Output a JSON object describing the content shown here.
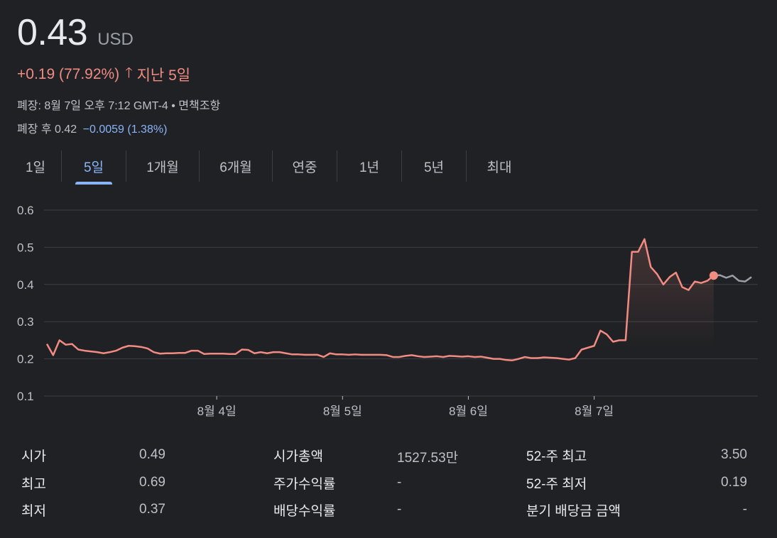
{
  "quote": {
    "price": "0.43",
    "currency": "USD",
    "change": "+0.19 (77.92%)",
    "period": "지난 5일",
    "meta": "폐장: 8월 7일 오후 7:12 GMT-4 • 면책조항",
    "after_label": "폐장 후 0.42",
    "after_change": "−0.0059 (1.38%)"
  },
  "tabs": [
    {
      "label": "1일"
    },
    {
      "label": "5일",
      "active": true
    },
    {
      "label": "1개월"
    },
    {
      "label": "6개월"
    },
    {
      "label": "연중"
    },
    {
      "label": "1년"
    },
    {
      "label": "5년"
    },
    {
      "label": "최대"
    }
  ],
  "colors": {
    "line": "#f28b82",
    "after_hours_line": "#9aa0a6",
    "grid": "#3c4043",
    "text": "#bdc1c6",
    "accent": "#8ab4f8"
  },
  "chart_data": {
    "type": "line",
    "ylim": [
      0.1,
      0.6
    ],
    "yticks": [
      "0.6",
      "0.5",
      "0.4",
      "0.3",
      "0.2",
      "0.1"
    ],
    "x_labels": [
      {
        "label": "8월 4일",
        "index": 27
      },
      {
        "label": "8월 5일",
        "index": 47
      },
      {
        "label": "8월 6일",
        "index": 67
      },
      {
        "label": "8월 7일",
        "index": 87
      }
    ],
    "series": [
      {
        "type": "regular",
        "values": [
          0.24,
          0.21,
          0.25,
          0.238,
          0.24,
          0.225,
          0.222,
          0.22,
          0.218,
          0.215,
          0.218,
          0.222,
          0.23,
          0.235,
          0.234,
          0.232,
          0.228,
          0.218,
          0.214,
          0.215,
          0.215,
          0.216,
          0.216,
          0.222,
          0.222,
          0.213,
          0.214,
          0.214,
          0.214,
          0.213,
          0.213,
          0.225,
          0.224,
          0.215,
          0.218,
          0.215,
          0.218,
          0.218,
          0.215,
          0.212,
          0.212,
          0.211,
          0.211,
          0.211,
          0.205,
          0.215,
          0.212,
          0.212,
          0.211,
          0.212,
          0.211,
          0.211,
          0.211,
          0.211,
          0.21,
          0.205,
          0.205,
          0.208,
          0.21,
          0.207,
          0.205,
          0.206,
          0.207,
          0.205,
          0.208,
          0.207,
          0.206,
          0.207,
          0.205,
          0.206,
          0.203,
          0.2,
          0.2,
          0.197,
          0.196,
          0.2,
          0.205,
          0.202,
          0.202,
          0.204,
          0.203,
          0.202,
          0.2,
          0.198,
          0.202,
          0.225,
          0.23,
          0.235,
          0.276,
          0.266,
          0.246,
          0.25,
          0.25,
          0.488,
          0.488,
          0.522,
          0.447,
          0.428,
          0.4,
          0.42,
          0.432,
          0.393,
          0.385,
          0.408,
          0.404,
          0.41,
          0.424
        ]
      },
      {
        "type": "after_hours",
        "values": [
          0.424,
          0.425,
          0.418,
          0.424,
          0.41,
          0.408,
          0.42
        ]
      }
    ],
    "current_point": 0.424
  },
  "stats": [
    [
      {
        "label": "시가",
        "value": "0.49"
      },
      {
        "label": "시가총액",
        "value": "1527.53만"
      },
      {
        "label": "52-주 최고",
        "value": "3.50"
      }
    ],
    [
      {
        "label": "최고",
        "value": "0.69"
      },
      {
        "label": "주가수익률",
        "value": "-"
      },
      {
        "label": "52-주 최저",
        "value": "0.19"
      }
    ],
    [
      {
        "label": "최저",
        "value": "0.37"
      },
      {
        "label": "배당수익률",
        "value": "-"
      },
      {
        "label": "분기 배당금 금액",
        "value": "-"
      }
    ]
  ]
}
